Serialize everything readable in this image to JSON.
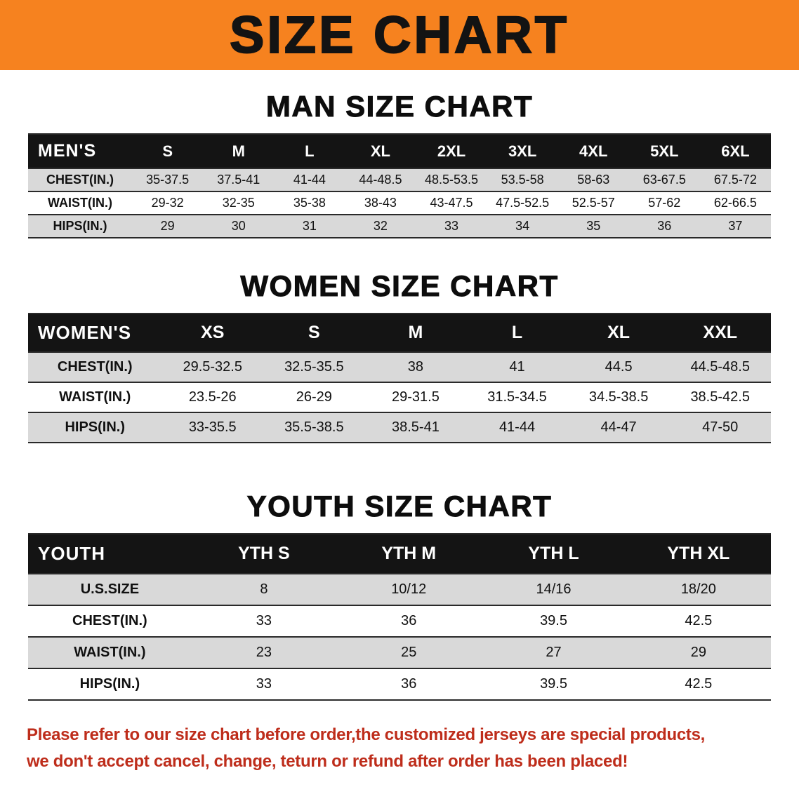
{
  "banner": {
    "title": "SIZE CHART"
  },
  "chart_data": [
    {
      "type": "table",
      "title": "MAN SIZE CHART",
      "columns": [
        "MEN'S",
        "S",
        "M",
        "L",
        "XL",
        "2XL",
        "3XL",
        "4XL",
        "5XL",
        "6XL"
      ],
      "rows": [
        [
          "CHEST(IN.)",
          "35-37.5",
          "37.5-41",
          "41-44",
          "44-48.5",
          "48.5-53.5",
          "53.5-58",
          "58-63",
          "63-67.5",
          "67.5-72"
        ],
        [
          "WAIST(IN.)",
          "29-32",
          "32-35",
          "35-38",
          "38-43",
          "43-47.5",
          "47.5-52.5",
          "52.5-57",
          "57-62",
          "62-66.5"
        ],
        [
          "HIPS(IN.)",
          "29",
          "30",
          "31",
          "32",
          "33",
          "34",
          "35",
          "36",
          "37"
        ]
      ]
    },
    {
      "type": "table",
      "title": "WOMEN SIZE CHART",
      "columns": [
        "WOMEN'S",
        "XS",
        "S",
        "M",
        "L",
        "XL",
        "XXL"
      ],
      "rows": [
        [
          "CHEST(IN.)",
          "29.5-32.5",
          "32.5-35.5",
          "38",
          "41",
          "44.5",
          "44.5-48.5"
        ],
        [
          "WAIST(IN.)",
          "23.5-26",
          "26-29",
          "29-31.5",
          "31.5-34.5",
          "34.5-38.5",
          "38.5-42.5"
        ],
        [
          "HIPS(IN.)",
          "33-35.5",
          "35.5-38.5",
          "38.5-41",
          "41-44",
          "44-47",
          "47-50"
        ]
      ]
    },
    {
      "type": "table",
      "title": "YOUTH SIZE CHART",
      "columns": [
        "YOUTH",
        "YTH S",
        "YTH M",
        "YTH L",
        "YTH XL"
      ],
      "rows": [
        [
          "U.S.SIZE",
          "8",
          "10/12",
          "14/16",
          "18/20"
        ],
        [
          "CHEST(IN.)",
          "33",
          "36",
          "39.5",
          "42.5"
        ],
        [
          "WAIST(IN.)",
          "23",
          "25",
          "27",
          "29"
        ],
        [
          "HIPS(IN.)",
          "33",
          "36",
          "39.5",
          "42.5"
        ]
      ]
    }
  ],
  "footer": {
    "lines": [
      "Please refer to our size chart before order,the customized jerseys are special products,",
      "we don't accept cancel, change, teturn or refund after order has been placed!"
    ]
  },
  "colors": {
    "banner_bg": "#F6821F",
    "banner_text": "#131313",
    "table_header_bg": "#141414",
    "table_header_text": "#FFFFFF",
    "row_alt_bg": "#D9D9D9",
    "footer_text": "#BE2D1B"
  }
}
